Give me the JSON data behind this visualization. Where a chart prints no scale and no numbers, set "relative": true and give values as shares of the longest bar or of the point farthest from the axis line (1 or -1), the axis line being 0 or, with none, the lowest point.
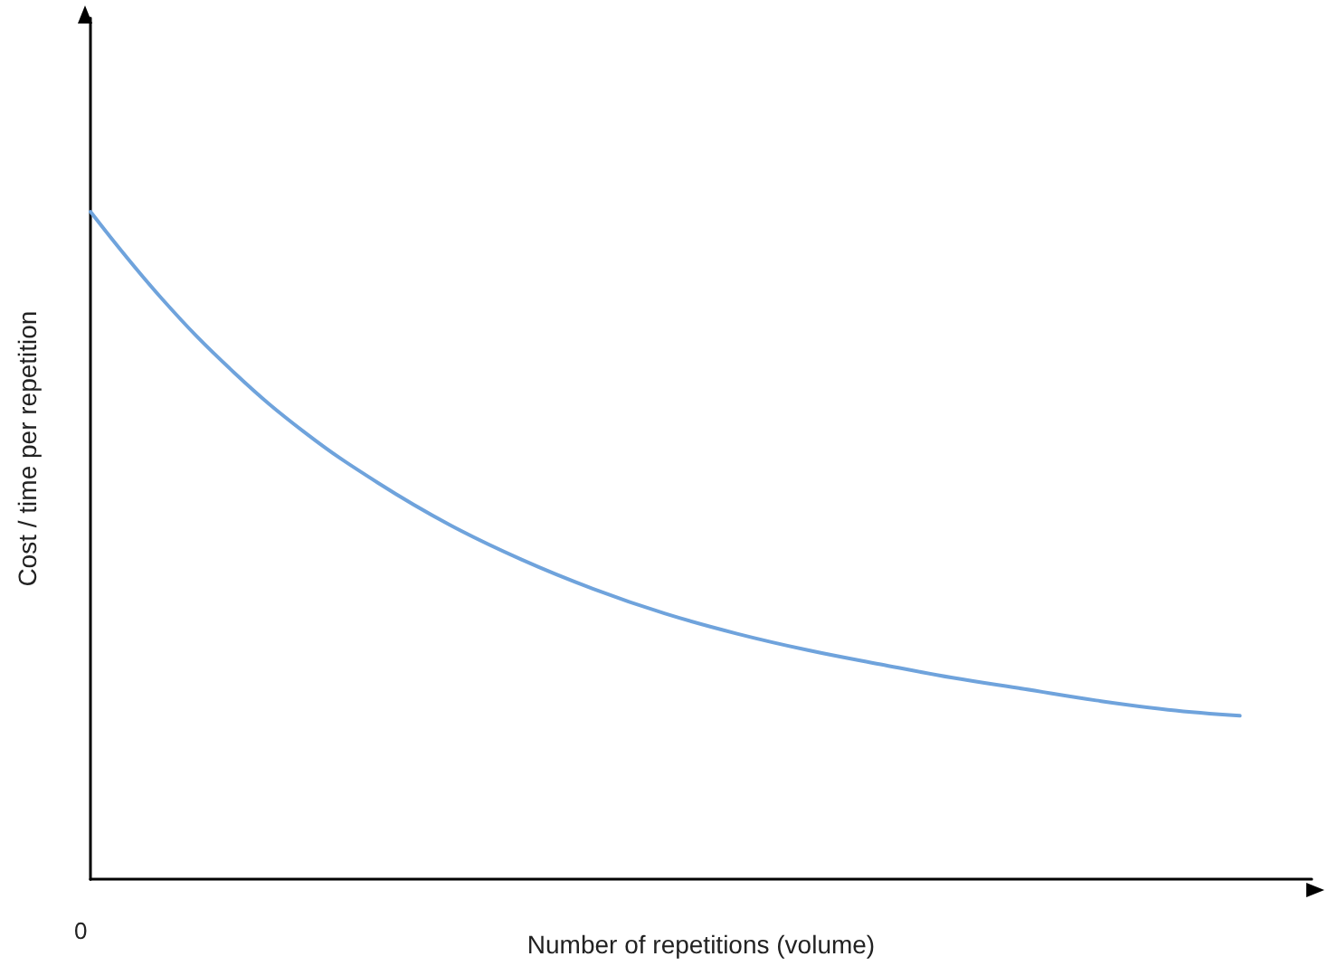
{
  "chart_data": {
    "type": "line",
    "relative": true,
    "xlabel": "Number of repetitions (volume)",
    "ylabel": "Cost / time per repetition",
    "annotations": [
      "0"
    ],
    "categories": [
      null,
      null,
      null,
      null,
      null,
      null,
      null,
      null,
      null,
      null,
      null,
      null,
      null,
      null,
      null,
      null,
      null,
      null
    ],
    "series": [
      {
        "color": "#6fa3dc",
        "values": [
          1.0,
          0.869,
          0.759,
          0.668,
          0.594,
          0.531,
          0.479,
          0.435,
          0.398,
          0.368,
          0.343,
          0.322,
          0.302,
          0.285,
          0.268,
          0.254,
          0.245,
          null
        ]
      }
    ],
    "tick_labels": "x",
    "grid": false,
    "marker": "none",
    "line_style": "solid"
  }
}
